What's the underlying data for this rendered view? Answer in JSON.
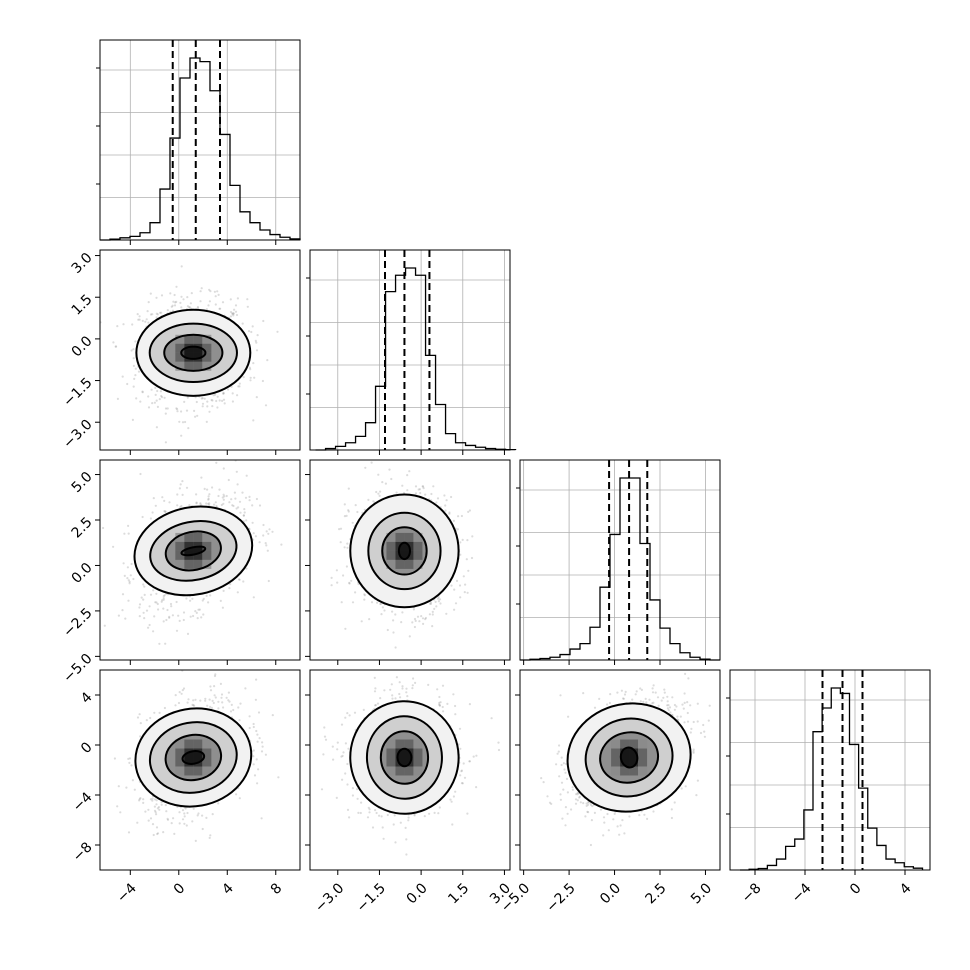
{
  "chart_data": {
    "type": "corner",
    "description_of_layout": "lower-triangular grid",
    "variables": [
      {
        "index": 0,
        "label": "",
        "range": [
          -6.5,
          10
        ],
        "ticks": [
          -4,
          0,
          4,
          8
        ],
        "tick_labels": [
          "−4",
          "0",
          "4",
          "8"
        ],
        "quantiles": [
          -0.5,
          1.4,
          3.4
        ],
        "histogram": {
          "edges_start": -6.5,
          "bin_width": 0.825,
          "counts": [
            0,
            5,
            12,
            20,
            40,
            95,
            280,
            560,
            890,
            1000,
            980,
            820,
            580,
            300,
            155,
            95,
            55,
            30,
            15,
            6
          ]
        }
      },
      {
        "index": 1,
        "label": "",
        "range": [
          -4,
          3.2
        ],
        "ticks": [
          -3.0,
          -1.5,
          0.0,
          1.5,
          3.0
        ],
        "tick_labels": [
          "−3.0",
          "−1.5",
          "0.0",
          "1.5",
          "3.0"
        ],
        "quantiles": [
          -1.3,
          -0.6,
          0.3
        ],
        "histogram": {
          "edges_start": -3.8,
          "bin_width": 0.36,
          "counts": [
            0,
            8,
            20,
            40,
            75,
            150,
            350,
            870,
            960,
            1000,
            960,
            520,
            250,
            90,
            40,
            25,
            15,
            8,
            4,
            2
          ]
        }
      },
      {
        "index": 2,
        "label": "",
        "range": [
          -5.2,
          5.8
        ],
        "ticks": [
          -5.0,
          -2.5,
          0.0,
          2.5,
          5.0
        ],
        "tick_labels": [
          "−5.0",
          "−2.5",
          "0.0",
          "2.5",
          "5.0"
        ],
        "quantiles": [
          -0.3,
          0.8,
          1.8
        ],
        "histogram": {
          "edges_start": -5.2,
          "bin_width": 0.55,
          "counts": [
            0,
            4,
            8,
            15,
            30,
            60,
            90,
            180,
            400,
            690,
            1000,
            1000,
            640,
            330,
            175,
            90,
            40,
            15,
            5,
            0
          ]
        }
      },
      {
        "index": 3,
        "label": "",
        "range": [
          -10,
          6
        ],
        "ticks": [
          -8,
          -4,
          0,
          4
        ],
        "tick_labels": [
          "−8",
          "−4",
          "0",
          "4"
        ],
        "quantiles": [
          -2.6,
          -1.0,
          0.6
        ],
        "histogram": {
          "edges_start": -9.2,
          "bin_width": 0.73,
          "counts": [
            0,
            4,
            8,
            25,
            60,
            130,
            170,
            330,
            760,
            890,
            1000,
            970,
            690,
            450,
            230,
            135,
            60,
            40,
            18,
            10
          ]
        }
      }
    ],
    "pairs": [
      {
        "x": 0,
        "y": 1,
        "mean": [
          1.2,
          -0.5
        ],
        "sd": [
          2.2,
          0.95
        ],
        "rho": 0.0,
        "contour_levels": [
          {
            "rx": 4.7,
            "ry": 1.55
          },
          {
            "rx": 3.6,
            "ry": 1.05
          },
          {
            "rx": 2.4,
            "ry": 0.65
          },
          {
            "rx": 1.0,
            "ry": 0.22
          }
        ]
      },
      {
        "x": 0,
        "y": 2,
        "mean": [
          1.2,
          0.8
        ],
        "sd": [
          2.2,
          1.6
        ],
        "rho": 0.35,
        "contour_levels": [
          {
            "rx": 4.9,
            "ry": 2.4
          },
          {
            "rx": 3.6,
            "ry": 1.6
          },
          {
            "rx": 2.3,
            "ry": 1.05
          },
          {
            "rx": 1.0,
            "ry": 0.2
          }
        ]
      },
      {
        "x": 0,
        "y": 3,
        "mean": [
          1.2,
          -1.0
        ],
        "sd": [
          2.2,
          2.3
        ],
        "rho": 0.3,
        "contour_levels": [
          {
            "rx": 4.8,
            "ry": 3.9
          },
          {
            "rx": 3.6,
            "ry": 2.8
          },
          {
            "rx": 2.3,
            "ry": 1.8
          },
          {
            "rx": 0.9,
            "ry": 0.5
          }
        ]
      },
      {
        "x": 1,
        "y": 2,
        "mean": [
          -0.6,
          0.8
        ],
        "sd": [
          0.95,
          1.6
        ],
        "rho": 0.0,
        "contour_levels": [
          {
            "rx": 1.95,
            "ry": 3.1
          },
          {
            "rx": 1.3,
            "ry": 2.1
          },
          {
            "rx": 0.8,
            "ry": 1.3
          },
          {
            "rx": 0.2,
            "ry": 0.45
          }
        ]
      },
      {
        "x": 1,
        "y": 3,
        "mean": [
          -0.6,
          -1.0
        ],
        "sd": [
          0.95,
          2.3
        ],
        "rho": 0.05,
        "contour_levels": [
          {
            "rx": 1.95,
            "ry": 4.5
          },
          {
            "rx": 1.35,
            "ry": 3.3
          },
          {
            "rx": 0.85,
            "ry": 2.1
          },
          {
            "rx": 0.25,
            "ry": 0.7
          }
        ]
      },
      {
        "x": 2,
        "y": 3,
        "mean": [
          0.8,
          -1.0
        ],
        "sd": [
          1.6,
          2.3
        ],
        "rho": 0.35,
        "contour_levels": [
          {
            "rx": 3.4,
            "ry": 4.3
          },
          {
            "rx": 2.4,
            "ry": 3.1
          },
          {
            "rx": 1.6,
            "ry": 2.0
          },
          {
            "rx": 0.45,
            "ry": 0.8
          }
        ]
      }
    ],
    "grid": true,
    "xlabel": "",
    "ylabel": "",
    "title": ""
  }
}
